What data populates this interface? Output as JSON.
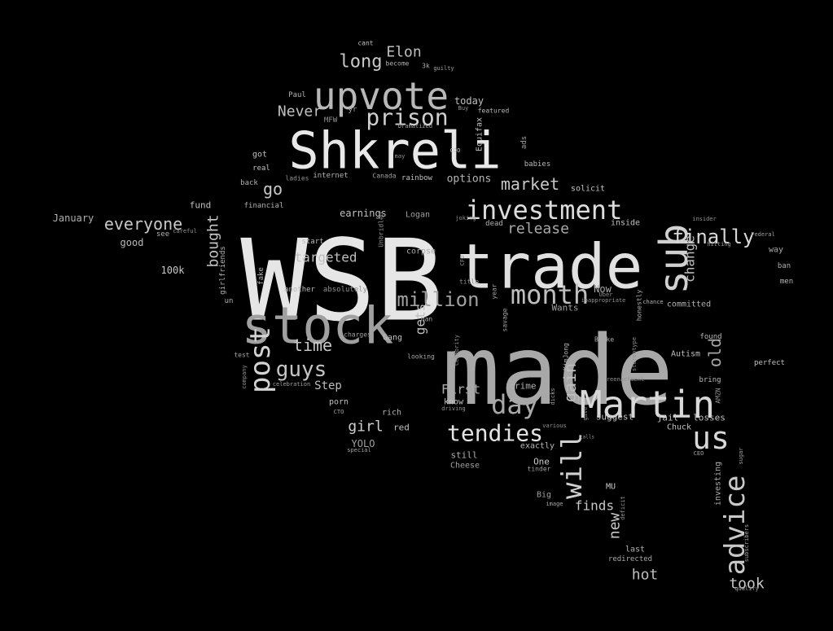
{
  "word_cloud": {
    "background": "#000000",
    "words": [
      {
        "text": "WSB",
        "shade": "#e6e6e6"
      },
      {
        "text": "made",
        "shade": "#a8a8a8"
      },
      {
        "text": "trade",
        "shade": "#e0e0e0"
      },
      {
        "text": "Shkreli",
        "shade": "#e8e8e8"
      },
      {
        "text": "stock",
        "shade": "#a0a0a0"
      },
      {
        "text": "upvote",
        "shade": "#b8b8b8"
      },
      {
        "text": "Martin",
        "shade": "#d8d8d8"
      },
      {
        "text": "investment",
        "shade": "#dcdcdc"
      },
      {
        "text": "month",
        "shade": "#bfbfbf"
      },
      {
        "text": "prison",
        "shade": "#d0d0d0"
      },
      {
        "text": "sub",
        "shade": "#d0d0d0"
      },
      {
        "text": "post",
        "shade": "#d4d4d4"
      },
      {
        "text": "tendies",
        "shade": "#e4e4e4"
      },
      {
        "text": "day",
        "shade": "#a8a8a8"
      },
      {
        "text": "us",
        "shade": "#d8d8d8"
      },
      {
        "text": "advice",
        "shade": "#c8c8c8"
      },
      {
        "text": "will",
        "shade": "#cfcfcf"
      },
      {
        "text": "finally",
        "shade": "#d8d8d8"
      },
      {
        "text": "million",
        "shade": "#a0a0a0"
      },
      {
        "text": "guys",
        "shade": "#c4c4c4"
      },
      {
        "text": "everyone",
        "shade": "#c8c8c8"
      },
      {
        "text": "market",
        "shade": "#c8c8c8"
      },
      {
        "text": "release",
        "shade": "#a8a8a8"
      },
      {
        "text": "long",
        "shade": "#c8c8c8"
      },
      {
        "text": "Elon",
        "shade": "#bdbdbd"
      },
      {
        "text": "Never",
        "shade": "#c0c0c0"
      },
      {
        "text": "go",
        "shade": "#c8c8c8"
      },
      {
        "text": "time",
        "shade": "#c8c8c8"
      },
      {
        "text": "girl",
        "shade": "#cfcfcf"
      },
      {
        "text": "bought",
        "shade": "#c8c8c8"
      },
      {
        "text": "targeted",
        "shade": "#bfbfbf"
      },
      {
        "text": "gain",
        "shade": "#bdbdbd"
      },
      {
        "text": "change",
        "shade": "#bdbdbd"
      },
      {
        "text": "old",
        "shade": "#a8a8a8"
      },
      {
        "text": "new",
        "shade": "#c8c8c8"
      },
      {
        "text": "hot",
        "shade": "#bdbdbd"
      },
      {
        "text": "took",
        "shade": "#c8c8c8"
      },
      {
        "text": "finds",
        "shade": "#c8c8c8"
      },
      {
        "text": "First",
        "shade": "#a8a8a8"
      },
      {
        "text": "Step",
        "shade": "#bdbdbd"
      },
      {
        "text": "gets",
        "shade": "#bdbdbd"
      },
      {
        "text": "options",
        "shade": "#b4b4b4"
      },
      {
        "text": "today",
        "shade": "#c0c0c0"
      },
      {
        "text": "earnings",
        "shade": "#c0c0c0"
      },
      {
        "text": "fund",
        "shade": "#c0c0c0"
      },
      {
        "text": "January",
        "shade": "#b0b0b0"
      },
      {
        "text": "good",
        "shade": "#b8b8b8"
      },
      {
        "text": "100k",
        "shade": "#c8c8c8"
      },
      {
        "text": "Now",
        "shade": "#a8a8a8"
      },
      {
        "text": "Wants",
        "shade": "#a0a0a0"
      },
      {
        "text": "committed",
        "shade": "#b0b0b0"
      },
      {
        "text": "jail",
        "shade": "#c0c0c0"
      },
      {
        "text": "losses",
        "shade": "#c0c0c0"
      },
      {
        "text": "suggest",
        "shade": "#c0c0c0"
      },
      {
        "text": "exactly",
        "shade": "#b8b8b8"
      },
      {
        "text": "One",
        "shade": "#c8c8c8"
      },
      {
        "text": "still",
        "shade": "#b0b0b0"
      },
      {
        "text": "Cheese",
        "shade": "#a0a0a0"
      },
      {
        "text": "YOLO",
        "shade": "#a0a0a0"
      },
      {
        "text": "red",
        "shade": "#c0c0c0"
      },
      {
        "text": "rich",
        "shade": "#b0b0b0"
      },
      {
        "text": "porn",
        "shade": "#c0c0c0"
      },
      {
        "text": "know",
        "shade": "#c0c0c0"
      },
      {
        "text": "crime",
        "shade": "#b0b0b0"
      },
      {
        "text": "Big",
        "shade": "#a0a0a0"
      },
      {
        "text": "MU",
        "shade": "#c8c8c8"
      },
      {
        "text": "last",
        "shade": "#b0b0b0"
      },
      {
        "text": "redirected",
        "shade": "#a8a8a8"
      },
      {
        "text": "investing",
        "shade": "#b0b0b0"
      },
      {
        "text": "Chuck",
        "shade": "#c0c0c0"
      },
      {
        "text": "Autism",
        "shade": "#c0c0c0"
      },
      {
        "text": "bring",
        "shade": "#b8b8b8"
      },
      {
        "text": "found",
        "shade": "#b8b8b8"
      },
      {
        "text": "perfect",
        "shade": "#c0c0c0"
      },
      {
        "text": "way",
        "shade": "#a8a8a8"
      },
      {
        "text": "ban",
        "shade": "#b0b0b0"
      },
      {
        "text": "men",
        "shade": "#b8b8b8"
      },
      {
        "text": "inside",
        "shade": "#c0c0c0"
      },
      {
        "text": "solicit",
        "shade": "#c0c0c0"
      },
      {
        "text": "Logan",
        "shade": "#a0a0a0"
      },
      {
        "text": "corpse",
        "shade": "#a8a8a8"
      },
      {
        "text": "start",
        "shade": "#b8b8b8"
      },
      {
        "text": "dead",
        "shade": "#b0b0b0"
      },
      {
        "text": "another",
        "shade": "#b8b8b8"
      },
      {
        "text": "absolutely",
        "shade": "#909090"
      },
      {
        "text": "fake",
        "shade": "#b0b0b0"
      },
      {
        "text": "girlfriends",
        "shade": "#b0b0b0"
      },
      {
        "text": "financial",
        "shade": "#b0b0b0"
      },
      {
        "text": "back",
        "shade": "#b0b0b0"
      },
      {
        "text": "real",
        "shade": "#c0c0c0"
      },
      {
        "text": "got",
        "shade": "#c0c0c0"
      },
      {
        "text": "MFW",
        "shade": "#909090"
      },
      {
        "text": "Paul",
        "shade": "#b0b0b0"
      },
      {
        "text": "yr",
        "shade": "#a0a0a0"
      },
      {
        "text": "featured",
        "shade": "#b8b8b8"
      },
      {
        "text": "Equifax",
        "shade": "#c0c0c0"
      },
      {
        "text": "ads",
        "shade": "#a0a0a0"
      },
      {
        "text": "babies",
        "shade": "#b8b8b8"
      },
      {
        "text": "rainbow",
        "shade": "#c0c0c0"
      },
      {
        "text": "Canada",
        "shade": "#a0a0a0"
      },
      {
        "text": "internet",
        "shade": "#b0b0b0"
      },
      {
        "text": "ladies",
        "shade": "#909090"
      },
      {
        "text": "cant",
        "shade": "#c0c0c0"
      },
      {
        "text": "become",
        "shade": "#b0b0b0"
      },
      {
        "text": "3k",
        "shade": "#b0b0b0"
      },
      {
        "text": "guilty",
        "shade": "#a0a0a0"
      },
      {
        "text": "Dramatized",
        "shade": "#a8a8a8"
      },
      {
        "text": "Buy",
        "shade": "#909090"
      },
      {
        "text": "COO",
        "shade": "#c0c0c0"
      },
      {
        "text": "may",
        "shade": "#909090"
      },
      {
        "text": "see",
        "shade": "#b0b0b0"
      },
      {
        "text": "careful",
        "shade": "#909090"
      },
      {
        "text": "un",
        "shade": "#b0b0b0"
      },
      {
        "text": "test",
        "shade": "#a0a0a0"
      },
      {
        "text": "celebration",
        "shade": "#a0a0a0"
      },
      {
        "text": "charges",
        "shade": "#a0a0a0"
      },
      {
        "text": "Gang",
        "shade": "#c0c0c0"
      },
      {
        "text": "looking",
        "shade": "#a8a8a8"
      },
      {
        "text": "man",
        "shade": "#a8a8a8"
      },
      {
        "text": "title",
        "shade": "#909090"
      },
      {
        "text": "year",
        "shade": "#a0a0a0"
      },
      {
        "text": "KimJong",
        "shade": "#b0b0b0"
      },
      {
        "text": "dicks",
        "shade": "#a0a0a0"
      },
      {
        "text": "gave",
        "shade": "#909090"
      },
      {
        "text": "honestly",
        "shade": "#b0b0b0"
      },
      {
        "text": "chance",
        "shade": "#b0b0b0"
      },
      {
        "text": "Broke",
        "shade": "#a8a8a8"
      },
      {
        "text": "Uber",
        "shade": "#909090"
      },
      {
        "text": "savage",
        "shade": "#a0a0a0"
      },
      {
        "text": "tinder",
        "shade": "#a0a0a0"
      },
      {
        "text": "image",
        "shade": "#a8a8a8"
      },
      {
        "text": "hitting",
        "shade": "#a0a0a0"
      },
      {
        "text": "special",
        "shade": "#a0a0a0"
      },
      {
        "text": "driving",
        "shade": "#909090"
      },
      {
        "text": "sugar",
        "shade": "#a0a0a0"
      },
      {
        "text": "qualify",
        "shade": "#a0a0a0"
      },
      {
        "text": "subscribers",
        "shade": "#a0a0a0"
      },
      {
        "text": "deficit",
        "shade": "#909090"
      },
      {
        "text": "AMZN",
        "shade": "#909090"
      },
      {
        "text": "CEO",
        "shade": "#a0a0a0"
      },
      {
        "text": "reenactment",
        "shade": "#909090"
      },
      {
        "text": "Unbridled",
        "shade": "#909090"
      },
      {
        "text": "Celebrity",
        "shade": "#909090"
      },
      {
        "text": "CFO",
        "shade": "#909090"
      },
      {
        "text": "company",
        "shade": "#909090"
      },
      {
        "text": "stereotype",
        "shade": "#909090"
      },
      {
        "text": "inappropriate",
        "shade": "#909090"
      },
      {
        "text": "CTO",
        "shade": "#a0a0a0"
      },
      {
        "text": "various",
        "shade": "#909090"
      },
      {
        "text": "calls",
        "shade": "#909090"
      },
      {
        "text": "joking",
        "shade": "#909090"
      },
      {
        "text": "insider",
        "shade": "#909090"
      },
      {
        "text": "Federal",
        "shade": "#a0a0a0"
      }
    ]
  }
}
